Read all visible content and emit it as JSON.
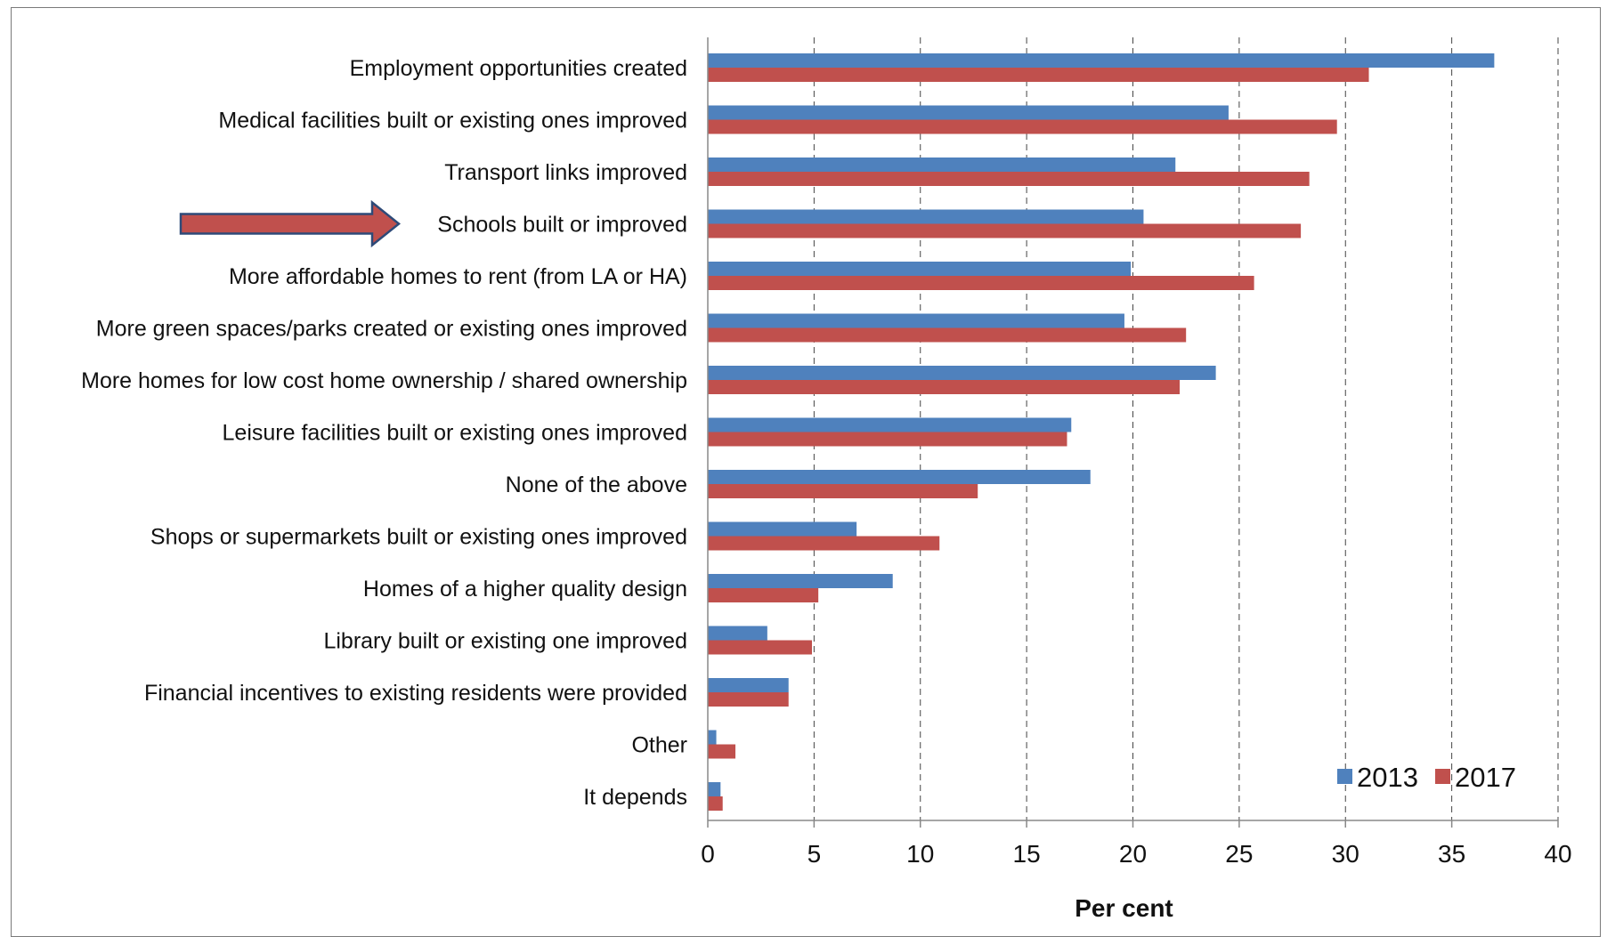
{
  "chart_data": {
    "type": "bar",
    "orientation": "horizontal",
    "categories": [
      "Employment opportunities created",
      "Medical facilities built or existing ones improved",
      "Transport links improved",
      "Schools built or improved",
      "More affordable homes to rent (from LA or HA)",
      "More green spaces/parks created or existing ones improved",
      "More homes for low cost home ownership / shared ownership",
      "Leisure facilities built or existing ones improved",
      "None of the above",
      "Shops or supermarkets built or existing ones improved",
      "Homes of a higher quality design",
      "Library built or existing one improved",
      "Financial incentives to existing residents were provided",
      "Other",
      "It depends"
    ],
    "series": [
      {
        "name": "2013",
        "color": "#4f81bd",
        "values": [
          37.0,
          24.5,
          22.0,
          20.5,
          19.9,
          19.6,
          23.9,
          17.1,
          18.0,
          7.0,
          8.7,
          2.8,
          3.8,
          0.4,
          0.6
        ]
      },
      {
        "name": "2017",
        "color": "#c0504d",
        "values": [
          31.1,
          29.6,
          28.3,
          27.9,
          25.7,
          22.5,
          22.2,
          16.9,
          12.7,
          10.9,
          5.2,
          4.9,
          3.8,
          1.3,
          0.7
        ]
      }
    ],
    "xlabel": "Per cent",
    "xlim": [
      0,
      40
    ],
    "xticks": [
      "0",
      "5",
      "10",
      "15",
      "20",
      "25",
      "30",
      "35",
      "40"
    ],
    "grid": "vertical dashed",
    "legend": {
      "position": "bottom-right",
      "entries": [
        "2013",
        "2017"
      ]
    },
    "annotation": {
      "type": "arrow",
      "points_to": "Schools built or improved",
      "color": "#c0504d"
    }
  }
}
